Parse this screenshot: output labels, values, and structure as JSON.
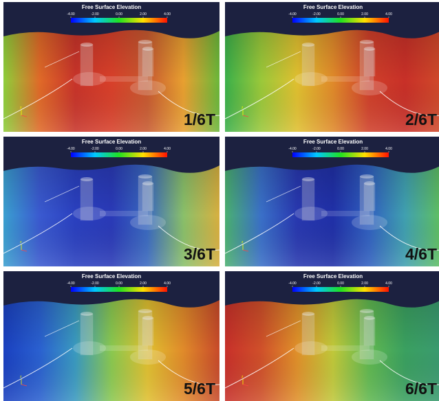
{
  "colorbar": {
    "title": "Free Surface Elevation",
    "ticks": [
      "-4.00",
      "-2.00",
      "0.00",
      "2.00",
      "4.00"
    ]
  },
  "axis_label": "z",
  "panels": [
    {
      "label": "1/6T"
    },
    {
      "label": "2/6T"
    },
    {
      "label": "3/6T"
    },
    {
      "label": "4/6T"
    },
    {
      "label": "5/6T"
    },
    {
      "label": "6/6T"
    }
  ]
}
